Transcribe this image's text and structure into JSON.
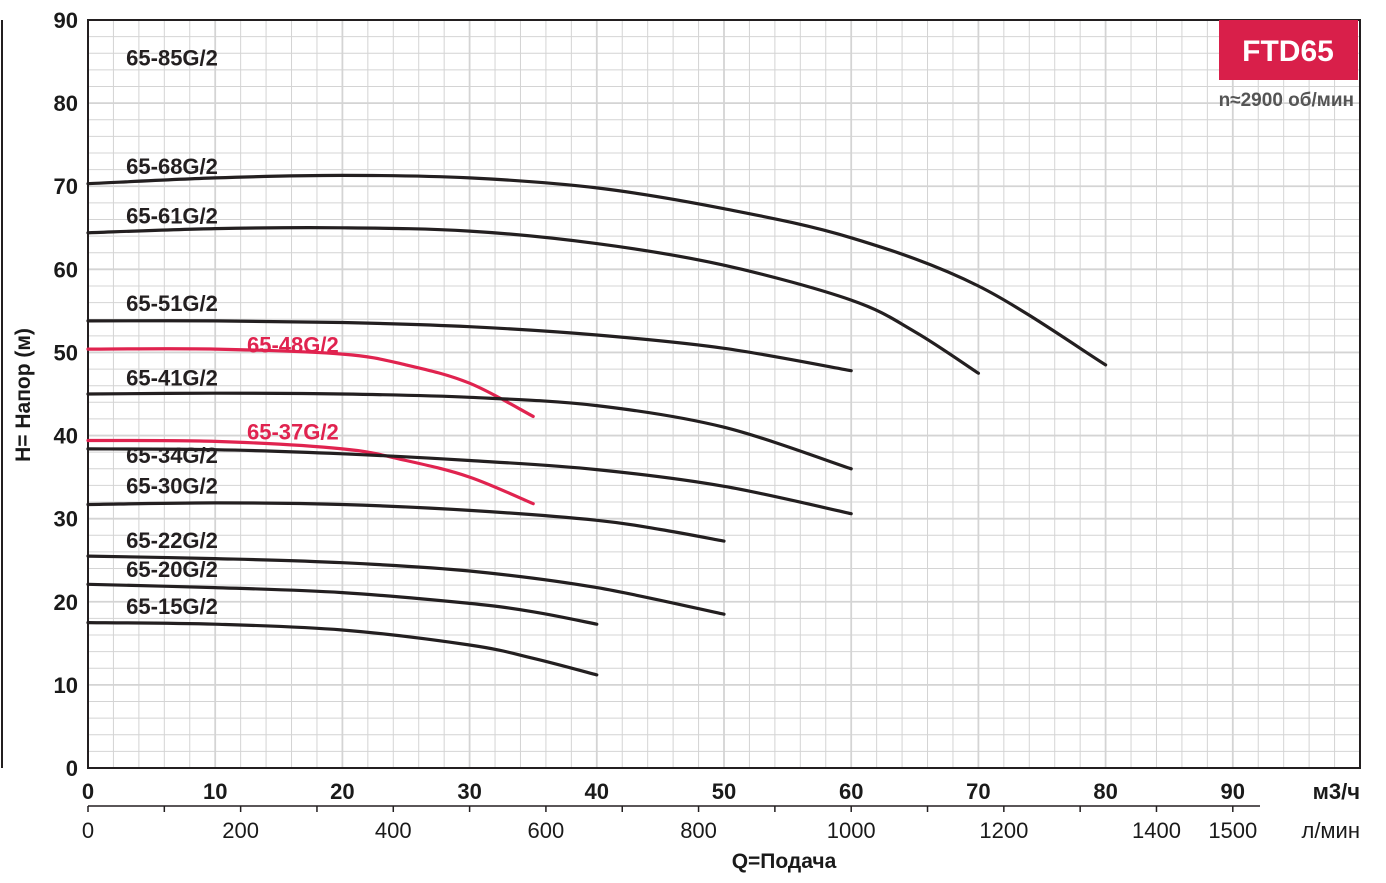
{
  "chart_data": {
    "type": "line",
    "badge": "FTD65",
    "speed_note": "n≈2900 об/мин",
    "ylabel": "H= Напор (м)",
    "xlabel": "Q=Подача",
    "x_unit": "м3/ч",
    "x2_unit": "л/мин",
    "xlim": [
      0,
      100
    ],
    "ylim": [
      0,
      90
    ],
    "y_ticks": [
      "0",
      "10",
      "20",
      "30",
      "40",
      "50",
      "60",
      "70",
      "80",
      "90"
    ],
    "x_ticks": [
      "0",
      "10",
      "20",
      "30",
      "40",
      "50",
      "60",
      "70",
      "80",
      "90"
    ],
    "x2_ticks": [
      {
        "lpm": 0,
        "label": "0"
      },
      {
        "lpm": 200,
        "label": "200"
      },
      {
        "lpm": 400,
        "label": "400"
      },
      {
        "lpm": 600,
        "label": "600"
      },
      {
        "lpm": 800,
        "label": "800"
      },
      {
        "lpm": 1000,
        "label": "1000"
      },
      {
        "lpm": 1200,
        "label": "1200"
      },
      {
        "lpm": 1400,
        "label": "1400"
      },
      {
        "lpm": 1500,
        "label": "1500"
      }
    ],
    "grid": true,
    "colors": {
      "standard": "#231f20",
      "highlight": "#e0234f",
      "badge": "#d91f4a",
      "grid": "#c8c8c8"
    },
    "series": [
      {
        "name": "65-85G/2",
        "color": "standard",
        "label_pos": [
          3,
          84.5
        ],
        "points": []
      },
      {
        "name": "65-68G/2",
        "color": "standard",
        "label_pos": [
          3,
          71.5
        ],
        "points": [
          [
            0,
            70.3
          ],
          [
            10,
            71.0
          ],
          [
            20,
            71.3
          ],
          [
            30,
            71.0
          ],
          [
            40,
            69.8
          ],
          [
            50,
            67.3
          ],
          [
            60,
            63.8
          ],
          [
            70,
            58.0
          ],
          [
            80,
            48.5
          ]
        ]
      },
      {
        "name": "65-61G/2",
        "color": "standard",
        "label_pos": [
          3,
          65.5
        ],
        "points": [
          [
            0,
            64.4
          ],
          [
            10,
            64.9
          ],
          [
            20,
            65.0
          ],
          [
            30,
            64.6
          ],
          [
            40,
            63.1
          ],
          [
            50,
            60.5
          ],
          [
            60,
            56.3
          ],
          [
            65,
            52.5
          ],
          [
            70,
            47.5
          ]
        ]
      },
      {
        "name": "65-51G/2",
        "color": "standard",
        "label_pos": [
          3,
          55.0
        ],
        "points": [
          [
            0,
            53.8
          ],
          [
            10,
            53.8
          ],
          [
            20,
            53.6
          ],
          [
            30,
            53.1
          ],
          [
            40,
            52.1
          ],
          [
            50,
            50.5
          ],
          [
            60,
            47.8
          ]
        ]
      },
      {
        "name": "65-48G/2",
        "color": "highlight",
        "label_pos": [
          12.5,
          50.0
        ],
        "points": [
          [
            0,
            50.4
          ],
          [
            10,
            50.4
          ],
          [
            20,
            49.8
          ],
          [
            25,
            48.5
          ],
          [
            30,
            46.3
          ],
          [
            35,
            42.3
          ]
        ]
      },
      {
        "name": "65-41G/2",
        "color": "standard",
        "label_pos": [
          3,
          46.0
        ],
        "points": [
          [
            0,
            45.0
          ],
          [
            10,
            45.1
          ],
          [
            20,
            45.0
          ],
          [
            30,
            44.6
          ],
          [
            40,
            43.6
          ],
          [
            50,
            41.0
          ],
          [
            60,
            36.0
          ]
        ]
      },
      {
        "name": "65-37G/2",
        "color": "highlight",
        "label_pos": [
          12.5,
          39.5
        ],
        "points": [
          [
            0,
            39.4
          ],
          [
            10,
            39.3
          ],
          [
            20,
            38.4
          ],
          [
            25,
            37.0
          ],
          [
            30,
            35.0
          ],
          [
            35,
            31.8
          ]
        ]
      },
      {
        "name": "65-34G/2",
        "color": "standard",
        "label_pos": [
          3,
          36.7
        ],
        "points": [
          [
            0,
            38.4
          ],
          [
            10,
            38.3
          ],
          [
            20,
            37.8
          ],
          [
            30,
            37.0
          ],
          [
            40,
            35.9
          ],
          [
            50,
            33.9
          ],
          [
            60,
            30.6
          ]
        ]
      },
      {
        "name": "65-30G/2",
        "color": "standard",
        "label_pos": [
          3,
          33.0
        ],
        "points": [
          [
            0,
            31.7
          ],
          [
            10,
            31.9
          ],
          [
            20,
            31.7
          ],
          [
            30,
            31.0
          ],
          [
            40,
            29.8
          ],
          [
            45,
            28.7
          ],
          [
            50,
            27.3
          ]
        ]
      },
      {
        "name": "65-22G/2",
        "color": "standard",
        "label_pos": [
          3,
          26.5
        ],
        "points": [
          [
            0,
            25.5
          ],
          [
            10,
            25.2
          ],
          [
            20,
            24.7
          ],
          [
            30,
            23.7
          ],
          [
            40,
            21.7
          ],
          [
            50,
            18.5
          ]
        ]
      },
      {
        "name": "65-20G/2",
        "color": "standard",
        "label_pos": [
          3,
          23.0
        ],
        "points": [
          [
            0,
            22.1
          ],
          [
            10,
            21.7
          ],
          [
            20,
            21.1
          ],
          [
            30,
            19.8
          ],
          [
            35,
            18.8
          ],
          [
            40,
            17.3
          ]
        ]
      },
      {
        "name": "65-15G/2",
        "color": "standard",
        "label_pos": [
          3,
          18.5
        ],
        "points": [
          [
            0,
            17.5
          ],
          [
            10,
            17.3
          ],
          [
            20,
            16.6
          ],
          [
            30,
            14.8
          ],
          [
            35,
            13.2
          ],
          [
            40,
            11.2
          ]
        ]
      }
    ]
  }
}
